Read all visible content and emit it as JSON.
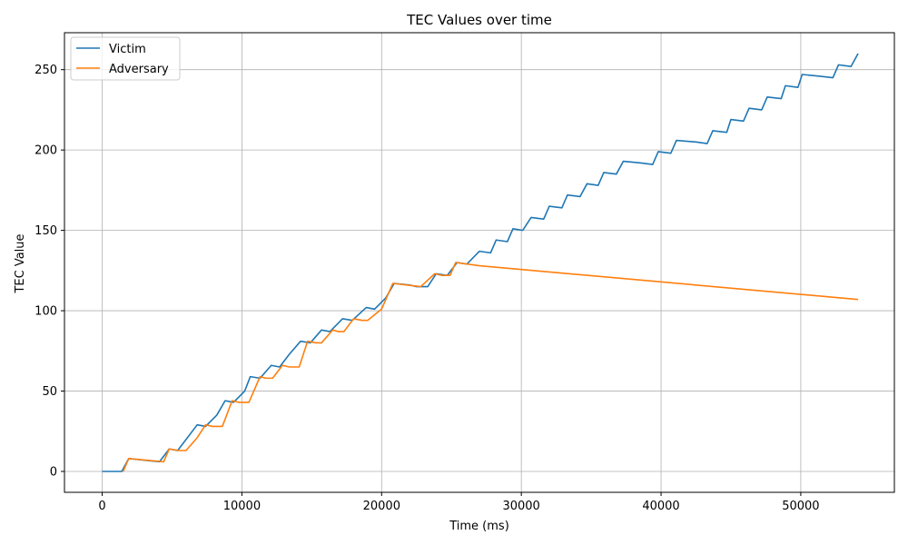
{
  "chart_data": {
    "type": "line",
    "title": "TEC Values over time",
    "xlabel": "Time (ms)",
    "ylabel": "TEC Value",
    "xlim": [
      -2700,
      56700
    ],
    "ylim": [
      -13,
      273
    ],
    "xticks": [
      0,
      10000,
      20000,
      30000,
      40000,
      50000
    ],
    "yticks": [
      0,
      50,
      100,
      150,
      200,
      250
    ],
    "grid": true,
    "legend": "top-left",
    "series": [
      {
        "name": "Victim",
        "color": "#1f77b4",
        "x": [
          0,
          1400,
          1900,
          4100,
          4800,
          5400,
          6800,
          7400,
          8200,
          8800,
          9400,
          10200,
          10600,
          11300,
          12100,
          12700,
          13400,
          14200,
          14900,
          15700,
          16300,
          17200,
          17900,
          18900,
          19500,
          20300,
          20900,
          22000,
          22500,
          23300,
          23900,
          24700,
          25400,
          26100,
          27000,
          27800,
          28200,
          29000,
          29400,
          30100,
          30700,
          31600,
          32000,
          32900,
          33300,
          34200,
          34700,
          35500,
          35900,
          36800,
          37300,
          38500,
          39400,
          39800,
          40700,
          41100,
          42500,
          43300,
          43700,
          44700,
          45000,
          45900,
          46300,
          47200,
          47600,
          48600,
          48900,
          49800,
          50100,
          51300,
          52300,
          52700,
          53600,
          54100
        ],
        "y": [
          0,
          0,
          8,
          6,
          14,
          13,
          29,
          28,
          35,
          44,
          43,
          50,
          59,
          58,
          66,
          65,
          73,
          81,
          80,
          88,
          87,
          95,
          94,
          102,
          101,
          108,
          117,
          116,
          115,
          115,
          123,
          122,
          130,
          129,
          137,
          136,
          144,
          143,
          151,
          150,
          158,
          157,
          165,
          164,
          172,
          171,
          179,
          178,
          186,
          185,
          193,
          192,
          191,
          199,
          198,
          206,
          205,
          204,
          212,
          211,
          219,
          218,
          226,
          225,
          233,
          232,
          240,
          239,
          247,
          246,
          245,
          253,
          252,
          260
        ]
      },
      {
        "name": "Adversary",
        "color": "#ff7f0e",
        "x": [
          1500,
          1900,
          4400,
          4800,
          5500,
          6000,
          6800,
          7400,
          7900,
          8600,
          9300,
          9800,
          10500,
          11300,
          11700,
          12200,
          12900,
          13400,
          14100,
          14700,
          15300,
          15700,
          16500,
          16900,
          17300,
          18000,
          18600,
          19000,
          20000,
          20800,
          22800,
          23800,
          24300,
          24900,
          25300,
          27000,
          54100
        ],
        "y": [
          0,
          8,
          6,
          14,
          13,
          13,
          21,
          29,
          28,
          28,
          44,
          43,
          43,
          59,
          58,
          58,
          66,
          65,
          65,
          81,
          80,
          80,
          88,
          87,
          87,
          95,
          94,
          94,
          101,
          117,
          115,
          123,
          122,
          122,
          130,
          128,
          107
        ]
      }
    ]
  }
}
